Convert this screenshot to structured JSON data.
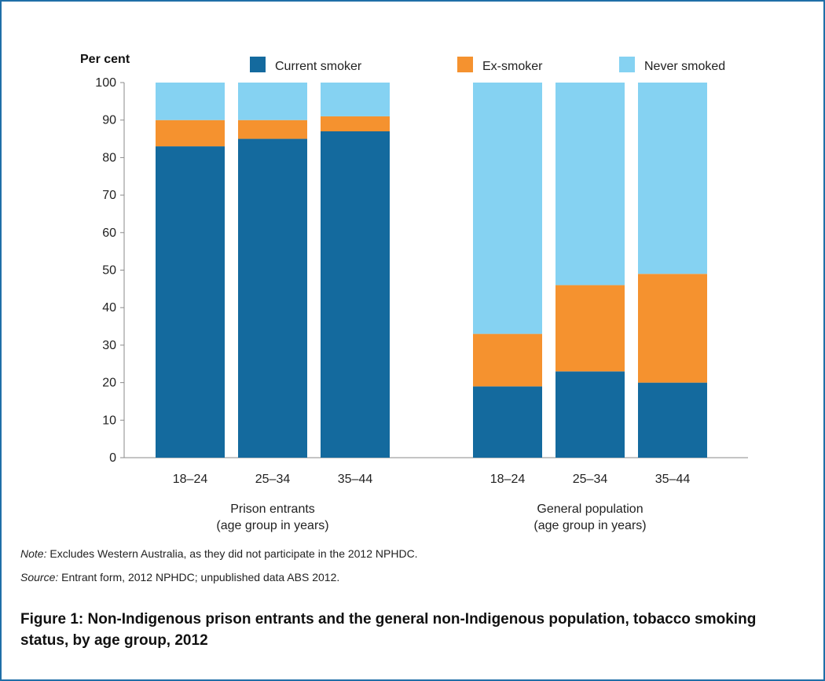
{
  "figure": {
    "title": "Figure 1: Non-Indigenous prison entrants and the general non-Indigenous population, tobacco smoking status, by age group, 2012",
    "note_label": "Note:",
    "note_text": "Excludes Western Australia, as they did not participate in the 2012 NPHDC.",
    "source_label": "Source:",
    "source_text": "Entrant form, 2012 NPHDC; unpublished data ABS 2012."
  },
  "chart_data": {
    "type": "bar",
    "stacked": true,
    "ylabel": "Per cent",
    "ylim": [
      0,
      100
    ],
    "yticks": [
      0,
      10,
      20,
      30,
      40,
      50,
      60,
      70,
      80,
      90,
      100
    ],
    "grid": false,
    "legend_position": "top",
    "groups": [
      {
        "label_lines": [
          "Prison entrants",
          "(age group in years)"
        ],
        "categories": [
          "18–24",
          "25–34",
          "35–44"
        ]
      },
      {
        "label_lines": [
          "General population",
          "(age group in years)"
        ],
        "categories": [
          "18–24",
          "25–34",
          "35–44"
        ]
      }
    ],
    "series": [
      {
        "name": "Current smoker",
        "color": "#146a9e",
        "values": [
          83,
          85,
          87,
          19,
          23,
          20
        ]
      },
      {
        "name": "Ex-smoker",
        "color": "#f5922f",
        "values": [
          7,
          5,
          4,
          14,
          23,
          29
        ]
      },
      {
        "name": "Never smoked",
        "color": "#85d2f2",
        "values": [
          10,
          10,
          9,
          67,
          54,
          51
        ]
      }
    ]
  }
}
